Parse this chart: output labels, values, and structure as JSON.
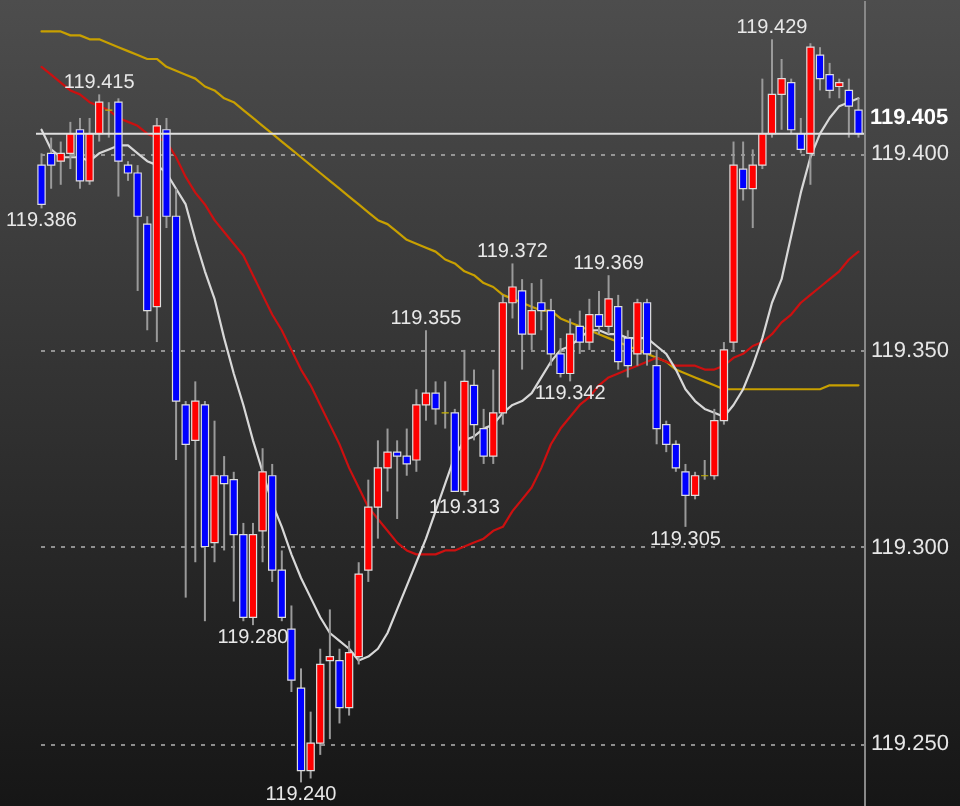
{
  "chart_data": {
    "type": "candlestick",
    "categories": [
      null,
      null,
      null,
      null,
      null,
      null,
      null,
      null,
      null,
      null,
      null,
      null,
      null,
      null,
      null,
      null,
      null,
      null,
      null,
      null,
      null,
      null,
      null,
      null,
      null,
      null,
      null,
      null,
      null,
      null,
      null,
      null,
      null,
      null,
      null,
      null,
      null,
      null,
      null,
      null,
      null,
      null,
      null,
      null,
      null,
      null,
      null,
      null,
      null,
      null,
      null,
      null,
      null,
      null,
      null,
      null,
      null,
      null,
      null,
      null,
      null,
      null,
      null,
      null,
      null,
      null,
      null,
      null,
      null,
      null,
      null,
      null,
      null,
      null,
      null,
      null,
      null,
      null,
      null,
      null,
      null,
      null,
      null,
      null,
      null,
      null
    ],
    "ohlc": [
      [
        119.397,
        119.4,
        119.386,
        119.387
      ],
      [
        119.4,
        119.404,
        119.391,
        119.397
      ],
      [
        119.398,
        119.403,
        119.392,
        119.4
      ],
      [
        119.4,
        119.408,
        119.396,
        119.405
      ],
      [
        119.406,
        119.409,
        119.391,
        119.393
      ],
      [
        119.393,
        119.409,
        119.392,
        119.405
      ],
      [
        119.405,
        119.415,
        119.403,
        119.413
      ],
      [
        119.411,
        119.413,
        119.404,
        119.411
      ],
      [
        119.413,
        119.414,
        119.389,
        119.398
      ],
      [
        119.397,
        119.398,
        119.393,
        119.395
      ],
      [
        119.395,
        119.397,
        119.365,
        119.384
      ],
      [
        119.382,
        119.384,
        119.355,
        119.36
      ],
      [
        119.361,
        119.409,
        119.352,
        119.407
      ],
      [
        119.406,
        119.409,
        119.381,
        119.384
      ],
      [
        119.384,
        119.391,
        119.322,
        119.337
      ],
      [
        119.336,
        119.337,
        119.287,
        119.326
      ],
      [
        119.327,
        119.342,
        119.296,
        119.337
      ],
      [
        119.336,
        119.337,
        119.281,
        119.3
      ],
      [
        119.301,
        119.332,
        119.296,
        119.318
      ],
      [
        119.318,
        119.323,
        119.299,
        119.316
      ],
      [
        119.317,
        119.319,
        119.286,
        119.303
      ],
      [
        119.303,
        119.306,
        119.281,
        119.282
      ],
      [
        119.282,
        119.306,
        119.28,
        119.303
      ],
      [
        119.304,
        119.325,
        119.296,
        119.319
      ],
      [
        119.318,
        119.321,
        119.291,
        119.294
      ],
      [
        119.294,
        119.299,
        119.281,
        119.282
      ],
      [
        119.279,
        119.285,
        119.263,
        119.266
      ],
      [
        119.264,
        119.269,
        119.24,
        119.243
      ],
      [
        119.243,
        119.258,
        119.241,
        119.25
      ],
      [
        119.25,
        119.274,
        119.247,
        119.27
      ],
      [
        119.271,
        119.284,
        119.251,
        119.272
      ],
      [
        119.271,
        119.274,
        119.255,
        119.259
      ],
      [
        119.259,
        119.276,
        119.257,
        119.273
      ],
      [
        119.272,
        119.296,
        119.27,
        119.293
      ],
      [
        119.294,
        119.317,
        119.291,
        119.31
      ],
      [
        119.31,
        119.327,
        119.302,
        119.32
      ],
      [
        119.32,
        119.33,
        119.314,
        119.324
      ],
      [
        119.324,
        119.327,
        119.307,
        119.323
      ],
      [
        119.323,
        119.33,
        119.318,
        119.321
      ],
      [
        119.322,
        119.34,
        119.319,
        119.336
      ],
      [
        119.336,
        119.355,
        119.332,
        119.339
      ],
      [
        119.339,
        119.342,
        119.331,
        119.335
      ],
      [
        119.334,
        119.342,
        119.33,
        119.334
      ],
      [
        119.334,
        119.335,
        119.314,
        119.314
      ],
      [
        119.314,
        119.35,
        119.313,
        119.342
      ],
      [
        119.341,
        119.345,
        119.327,
        119.331
      ],
      [
        119.33,
        119.335,
        119.321,
        119.323
      ],
      [
        119.323,
        119.345,
        119.321,
        119.334
      ],
      [
        119.334,
        119.364,
        119.331,
        119.362
      ],
      [
        119.362,
        119.372,
        119.358,
        119.366
      ],
      [
        119.365,
        119.368,
        119.345,
        119.354
      ],
      [
        119.354,
        119.367,
        119.35,
        119.36
      ],
      [
        119.362,
        119.368,
        119.355,
        119.36
      ],
      [
        119.36,
        119.363,
        119.346,
        119.349
      ],
      [
        119.349,
        119.353,
        119.343,
        119.344
      ],
      [
        119.344,
        119.358,
        119.342,
        119.354
      ],
      [
        119.356,
        119.36,
        119.349,
        119.352
      ],
      [
        119.352,
        119.363,
        119.35,
        119.359
      ],
      [
        119.359,
        119.365,
        119.354,
        119.356
      ],
      [
        119.356,
        119.369,
        119.354,
        119.363
      ],
      [
        119.361,
        119.364,
        119.345,
        119.347
      ],
      [
        119.353,
        119.355,
        119.343,
        119.346
      ],
      [
        119.349,
        119.363,
        119.346,
        119.362
      ],
      [
        119.362,
        119.363,
        119.346,
        119.349
      ],
      [
        119.346,
        119.35,
        119.326,
        119.33
      ],
      [
        119.331,
        119.332,
        119.324,
        119.326
      ],
      [
        119.326,
        119.327,
        119.319,
        119.32
      ],
      [
        119.319,
        119.321,
        119.305,
        119.313
      ],
      [
        119.313,
        119.319,
        119.312,
        119.318
      ],
      [
        119.318,
        119.322,
        119.317,
        119.318
      ],
      [
        119.318,
        119.335,
        119.317,
        119.332
      ],
      [
        119.332,
        119.352,
        119.331,
        119.35
      ],
      [
        119.352,
        119.403,
        119.35,
        119.397
      ],
      [
        119.396,
        119.403,
        119.388,
        119.391
      ],
      [
        119.391,
        119.401,
        119.381,
        119.397
      ],
      [
        119.397,
        119.419,
        119.396,
        119.405
      ],
      [
        119.405,
        119.429,
        119.404,
        119.415
      ],
      [
        119.415,
        119.424,
        119.406,
        119.419
      ],
      [
        119.418,
        119.419,
        119.405,
        119.406
      ],
      [
        119.405,
        119.409,
        119.4,
        119.401
      ],
      [
        119.4,
        119.428,
        119.392,
        119.427
      ],
      [
        119.425,
        119.427,
        119.416,
        119.419
      ],
      [
        119.42,
        119.423,
        119.414,
        119.416
      ],
      [
        119.417,
        119.419,
        119.414,
        119.418
      ],
      [
        119.416,
        119.419,
        119.404,
        119.412
      ],
      [
        119.411,
        119.414,
        119.404,
        119.405
      ]
    ],
    "colors": [
      "#0000ff",
      "#0000ff",
      "#ff0000",
      "#ff0000",
      "#0000ff",
      "#ff0000",
      "#ff0000",
      "#c8b400",
      "#0000ff",
      "#0000ff",
      "#0000ff",
      "#0000ff",
      "#ff0000",
      "#0000ff",
      "#0000ff",
      "#0000ff",
      "#ff0000",
      "#0000ff",
      "#ff0000",
      "#0000ff",
      "#0000ff",
      "#0000ff",
      "#ff0000",
      "#ff0000",
      "#0000ff",
      "#0000ff",
      "#0000ff",
      "#0000ff",
      "#ff0000",
      "#ff0000",
      "#ff0000",
      "#0000ff",
      "#ff0000",
      "#ff0000",
      "#ff0000",
      "#ff0000",
      "#ff0000",
      "#0000ff",
      "#0000ff",
      "#ff0000",
      "#ff0000",
      "#0000ff",
      "#c8b400",
      "#0000ff",
      "#ff0000",
      "#0000ff",
      "#0000ff",
      "#ff0000",
      "#ff0000",
      "#ff0000",
      "#0000ff",
      "#ff0000",
      "#0000ff",
      "#0000ff",
      "#0000ff",
      "#ff0000",
      "#0000ff",
      "#ff0000",
      "#0000ff",
      "#ff0000",
      "#0000ff",
      "#0000ff",
      "#ff0000",
      "#0000ff",
      "#0000ff",
      "#0000ff",
      "#0000ff",
      "#0000ff",
      "#ff0000",
      "#c8b400",
      "#ff0000",
      "#ff0000",
      "#ff0000",
      "#0000ff",
      "#ff0000",
      "#ff0000",
      "#ff0000",
      "#ff0000",
      "#0000ff",
      "#0000ff",
      "#ff0000",
      "#0000ff",
      "#0000ff",
      "#ff0000",
      "#0000ff",
      "#0000ff"
    ],
    "series": [
      {
        "type": "line",
        "color": "#c8a000",
        "values": [
          119.431,
          119.431,
          119.431,
          119.43,
          119.43,
          119.429,
          119.429,
          119.428,
          119.427,
          119.426,
          119.425,
          119.424,
          119.424,
          119.422,
          119.421,
          119.42,
          119.419,
          119.417,
          119.416,
          119.414,
          119.413,
          119.411,
          119.409,
          119.407,
          119.405,
          119.403,
          119.401,
          119.399,
          119.397,
          119.395,
          119.393,
          119.391,
          119.389,
          119.387,
          119.385,
          119.383,
          119.382,
          119.38,
          119.378,
          119.377,
          119.376,
          119.375,
          119.373,
          119.372,
          119.37,
          119.369,
          119.367,
          119.366,
          119.364,
          119.363,
          119.362,
          119.361,
          119.36,
          119.36,
          119.358,
          119.357,
          119.356,
          119.355,
          119.354,
          119.353,
          119.352,
          119.351,
          119.35,
          119.349,
          119.348,
          119.347,
          119.345,
          119.344,
          119.343,
          119.342,
          119.341,
          119.34,
          119.34,
          119.34,
          119.34,
          119.34,
          119.34,
          119.34,
          119.34,
          119.34,
          119.34,
          119.34,
          119.341,
          119.341,
          119.341,
          119.341
        ]
      },
      {
        "type": "line",
        "color": "#cc1010",
        "values": [
          119.422,
          119.42,
          119.418,
          119.416,
          119.415,
          119.413,
          119.412,
          119.411,
          119.409,
          119.408,
          119.407,
          119.405,
          119.404,
          119.403,
          119.399,
          119.394,
          119.39,
          119.387,
          119.383,
          119.38,
          119.377,
          119.374,
          119.369,
          119.364,
          119.359,
          119.355,
          119.35,
          119.345,
          119.341,
          119.336,
          119.331,
          119.326,
          119.32,
          119.315,
          119.31,
          119.307,
          119.304,
          119.301,
          119.299,
          119.298,
          119.298,
          119.298,
          119.299,
          119.299,
          119.3,
          119.301,
          119.302,
          119.304,
          119.305,
          119.309,
          119.312,
          119.315,
          119.32,
          119.326,
          119.33,
          119.333,
          119.336,
          119.338,
          119.341,
          119.343,
          119.344,
          119.345,
          119.346,
          119.347,
          119.348,
          119.347,
          119.346,
          119.346,
          119.346,
          119.345,
          119.345,
          119.346,
          119.348,
          119.349,
          119.351,
          119.352,
          119.354,
          119.357,
          119.359,
          119.362,
          119.364,
          119.366,
          119.368,
          119.37,
          119.373,
          119.375
        ]
      },
      {
        "type": "line",
        "color": "#d8d8d8",
        "values": [
          119.406,
          119.401,
          119.399,
          119.399,
          119.399,
          119.398,
          119.4,
          119.401,
          119.402,
          119.402,
          119.4,
          119.398,
          119.397,
          119.395,
          119.391,
          119.387,
          119.378,
          119.37,
          119.363,
          119.353,
          119.344,
          119.336,
          119.327,
          119.319,
          119.311,
          119.305,
          119.298,
          119.292,
          119.287,
          119.282,
          119.278,
          119.276,
          119.274,
          119.271,
          119.272,
          119.274,
          119.278,
          119.284,
          119.29,
          119.296,
          119.302,
          119.309,
          119.316,
          119.323,
          119.327,
          119.328,
          119.33,
          119.331,
          119.334,
          119.336,
          119.337,
          119.339,
          119.343,
          119.347,
          119.35,
          119.351,
          119.353,
          119.355,
          119.355,
          119.354,
          119.354,
          119.353,
          119.353,
          119.353,
          119.351,
          119.349,
          119.345,
          119.34,
          119.337,
          119.335,
          119.334,
          119.333,
          119.336,
          119.34,
          119.346,
          119.353,
          119.362,
          119.368,
          119.379,
          119.39,
          119.399,
          119.405,
          119.409,
          119.412,
          119.413,
          119.414
        ]
      }
    ],
    "ylim": [
      119.234,
      119.439
    ],
    "yticks": [
      {
        "value": 119.25,
        "label": "119.250"
      },
      {
        "value": 119.3,
        "label": "119.300"
      },
      {
        "value": 119.35,
        "label": "119.350"
      },
      {
        "value": 119.4,
        "label": "119.400"
      }
    ],
    "grid": "y",
    "ref_lines": [
      {
        "axis": "y",
        "value": 119.405,
        "label": "119.405",
        "color": "#e0e0e0"
      }
    ],
    "annotations": [
      {
        "text": "119.386",
        "y": 119.386
      },
      {
        "text": "119.415",
        "y": 119.415
      },
      {
        "text": "119.280",
        "y": 119.28
      },
      {
        "text": "119.240",
        "y": 119.24
      },
      {
        "text": "119.355",
        "y": 119.355
      },
      {
        "text": "119.313",
        "y": 119.313
      },
      {
        "text": "119.372",
        "y": 119.372
      },
      {
        "text": "119.342",
        "y": 119.342
      },
      {
        "text": "119.369",
        "y": 119.369
      },
      {
        "text": "119.305",
        "y": 119.305
      },
      {
        "text": "119.429",
        "y": 119.429
      }
    ]
  }
}
